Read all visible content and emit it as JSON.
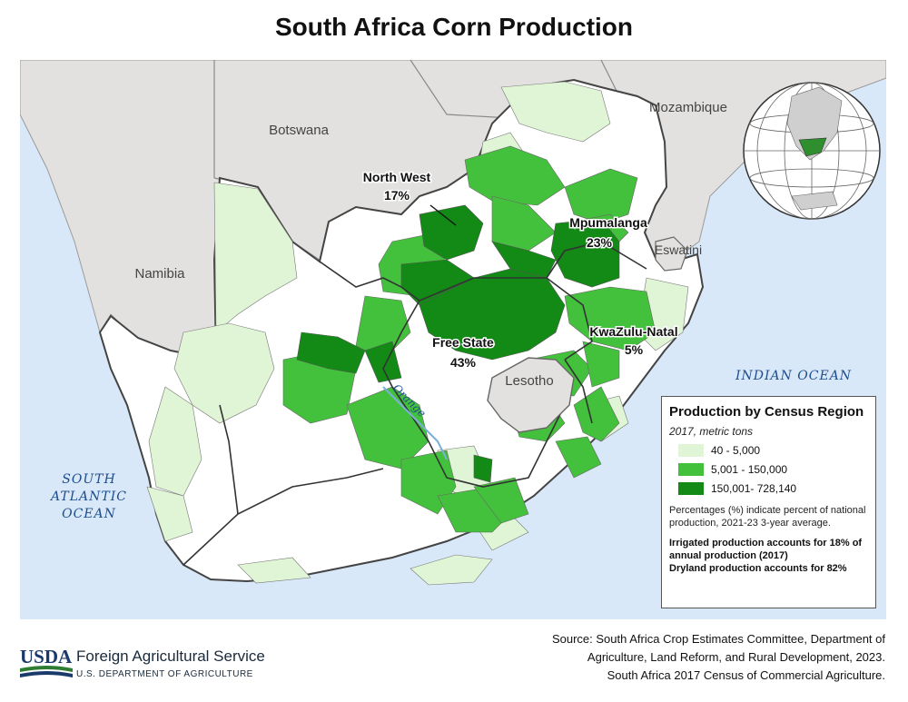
{
  "title": "South Africa Corn Production",
  "map": {
    "countries": {
      "botswana": "Botswana",
      "namibia": "Namibia",
      "mozambique": "Mozambique",
      "eswatini": "Eswatini",
      "lesotho": "Lesotho"
    },
    "oceans": {
      "indian": "INDIAN OCEAN",
      "atlantic_line1": "SOUTH",
      "atlantic_line2": "ATLANTIC",
      "atlantic_line3": "OCEAN"
    },
    "river": "Orange",
    "provinces": [
      {
        "name": "North West",
        "share": "17%"
      },
      {
        "name": "Mpumalanga",
        "share": "23%"
      },
      {
        "name": "Free State",
        "share": "43%"
      },
      {
        "name": "KwaZulu-Natal",
        "share": "5%"
      }
    ],
    "colors": {
      "ocean": "#d9e8f8",
      "neighbor_land": "#e2e1df",
      "low": "#dff5d6",
      "mid": "#44c13c",
      "high": "#138a15",
      "none": "#ffffff"
    }
  },
  "legend": {
    "title": "Production by Census Region",
    "subtitle": "2017, metric tons",
    "items": [
      {
        "label": "40 - 5,000",
        "color": "#dff5d6"
      },
      {
        "label": "5,001 - 150,000",
        "color": "#44c13c"
      },
      {
        "label": "150,001- 728,140",
        "color": "#138a15"
      }
    ],
    "note": "Percentages (%) indicate percent of national production, 2021-23 3-year average.",
    "irrigated": "Irrigated production accounts for 18% of annual production (2017)",
    "dryland": "Dryland production accounts for 82%"
  },
  "source": {
    "line1": "Source: South Africa Crop Estimates Committee, Department of",
    "line2": "Agriculture, Land Reform, and Rural Development, 2023.",
    "line3": "South Africa 2017 Census of Commercial Agriculture."
  },
  "footer": {
    "usda": "USDA",
    "agency": "Foreign Agricultural Service",
    "department": "U.S. DEPARTMENT OF AGRICULTURE"
  }
}
